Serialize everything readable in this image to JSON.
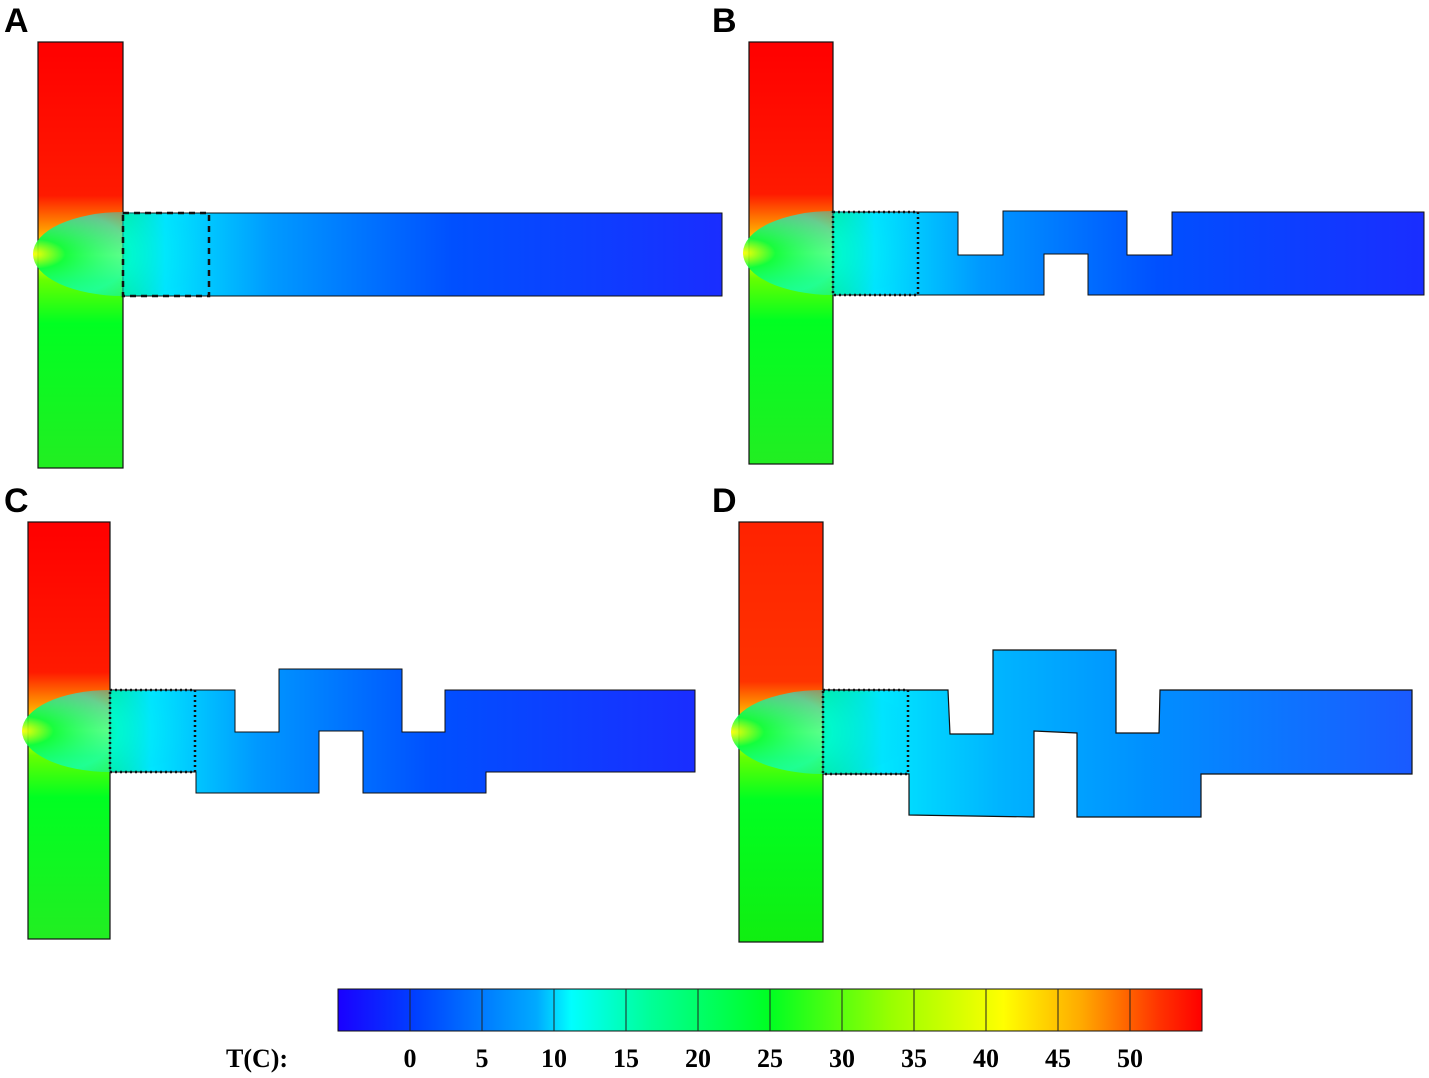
{
  "panels": [
    {
      "label": "A"
    },
    {
      "label": "B"
    },
    {
      "label": "C"
    },
    {
      "label": "D"
    }
  ],
  "colorbar": {
    "unit_label": "T(C):",
    "ticks": [
      "0",
      "5",
      "10",
      "15",
      "20",
      "25",
      "30",
      "35",
      "40",
      "45",
      "50"
    ],
    "range": [
      -5,
      55
    ],
    "colors": [
      "#1a00ff",
      "#0055ff",
      "#00aaff",
      "#00ffff",
      "#00ff88",
      "#00ff33",
      "#44ff00",
      "#aaff00",
      "#ffff00",
      "#ffaa00",
      "#ff5500",
      "#ff0000"
    ]
  },
  "colors": {
    "hot": "#ff0000",
    "warm_upper": "#ff2a00",
    "mid": "#ffff00",
    "cool": "#00ff22",
    "cold": "#1a00ff",
    "channel": "#0a3cff"
  }
}
